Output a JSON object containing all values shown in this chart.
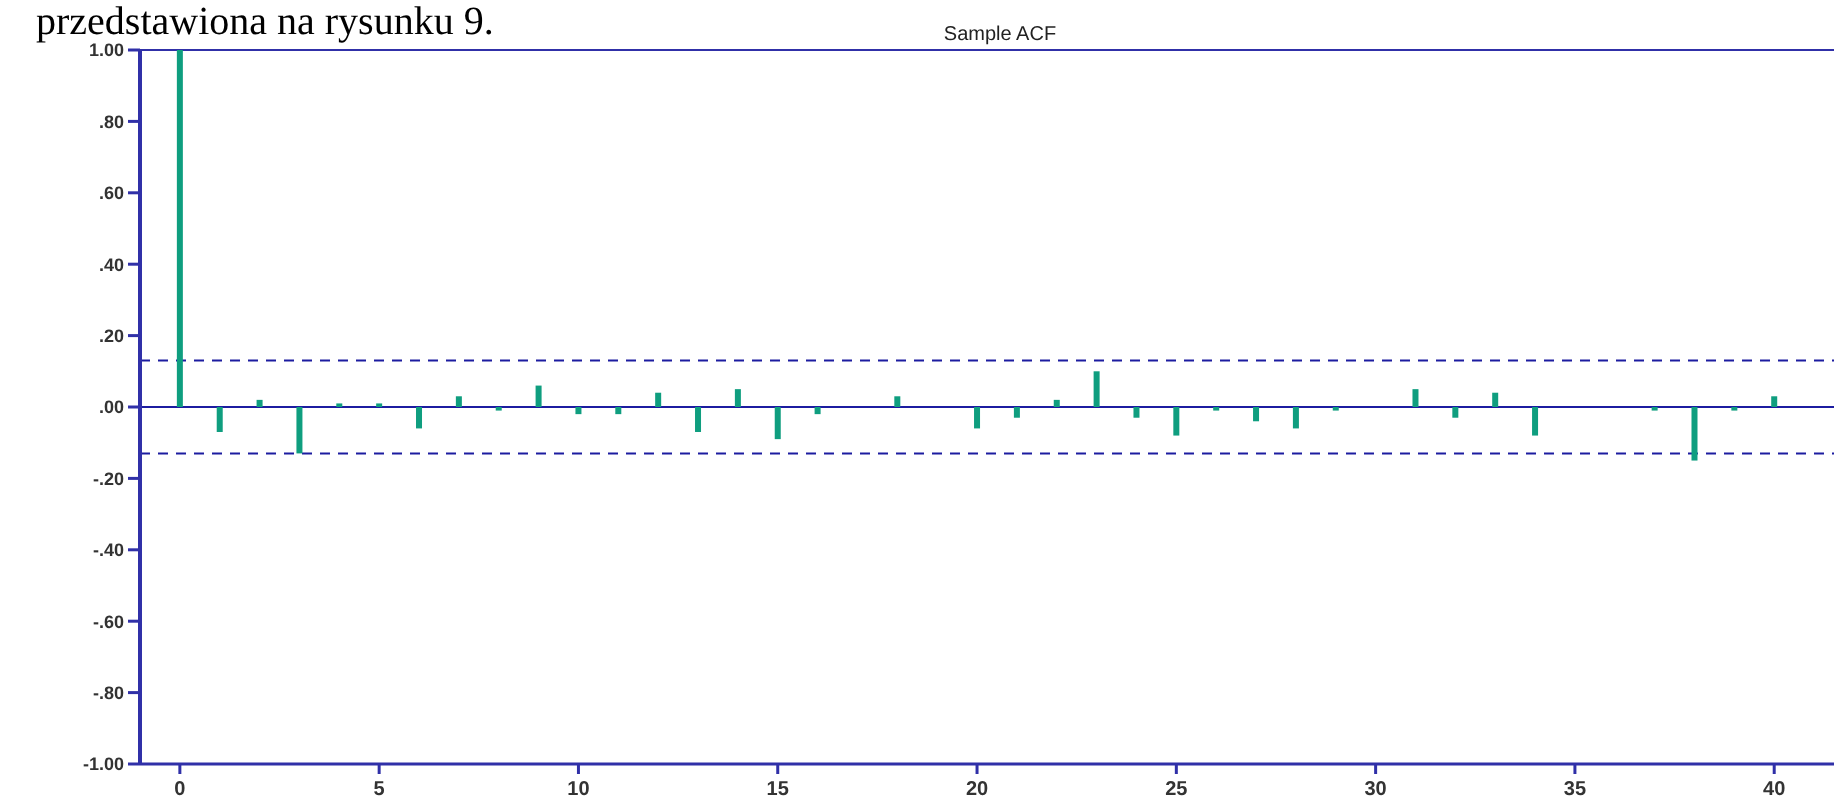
{
  "chart_data": {
    "type": "bar",
    "title": "Sample ACF",
    "annotations": [
      "przedstawiona na rysunku 9."
    ],
    "x": [
      0,
      1,
      2,
      3,
      4,
      5,
      6,
      7,
      8,
      9,
      10,
      11,
      12,
      13,
      14,
      15,
      16,
      17,
      18,
      19,
      20,
      21,
      22,
      23,
      24,
      25,
      26,
      27,
      28,
      29,
      30,
      31,
      32,
      33,
      34,
      35,
      36,
      37,
      38,
      39,
      40
    ],
    "values": [
      1.0,
      -0.07,
      0.02,
      -0.13,
      0.01,
      0.01,
      -0.06,
      0.03,
      -0.01,
      0.06,
      -0.02,
      -0.02,
      0.04,
      -0.07,
      0.05,
      -0.09,
      -0.02,
      0,
      0.03,
      0,
      -0.06,
      -0.03,
      0.02,
      0.1,
      -0.03,
      -0.08,
      -0.01,
      -0.04,
      -0.06,
      -0.01,
      0,
      0.05,
      -0.03,
      0.04,
      -0.08,
      0,
      0,
      -0.01,
      -0.15,
      -0.01,
      0.03
    ],
    "color": "#0f9e7f",
    "xlim": [
      -1,
      41.5
    ],
    "xticks": [
      0,
      5,
      10,
      15,
      20,
      25,
      30,
      35,
      40
    ],
    "ylim": [
      -1,
      1
    ],
    "yticks": [
      {
        "value": -1,
        "label": "-1.00"
      },
      {
        "value": -0.8,
        "label": "-.80"
      },
      {
        "value": -0.6,
        "label": "-.60"
      },
      {
        "value": -0.4,
        "label": "-.40"
      },
      {
        "value": -0.2,
        "label": "-.20"
      },
      {
        "value": 0,
        "label": ".00"
      },
      {
        "value": 0.2,
        "label": ".20"
      },
      {
        "value": 0.4,
        "label": ".40"
      },
      {
        "value": 0.6,
        "label": ".60"
      },
      {
        "value": 0.8,
        "label": ".80"
      },
      {
        "value": 1,
        "label": "1.00"
      }
    ],
    "ref_lines": [
      {
        "axis": "y",
        "value": 0.13,
        "color": "#1c1ca0",
        "line_style": "dashed"
      },
      {
        "axis": "y",
        "value": 0,
        "color": "#1c1ca0",
        "line_style": "solid"
      },
      {
        "axis": "y",
        "value": -0.13,
        "color": "#1c1ca0",
        "line_style": "dashed"
      }
    ]
  }
}
